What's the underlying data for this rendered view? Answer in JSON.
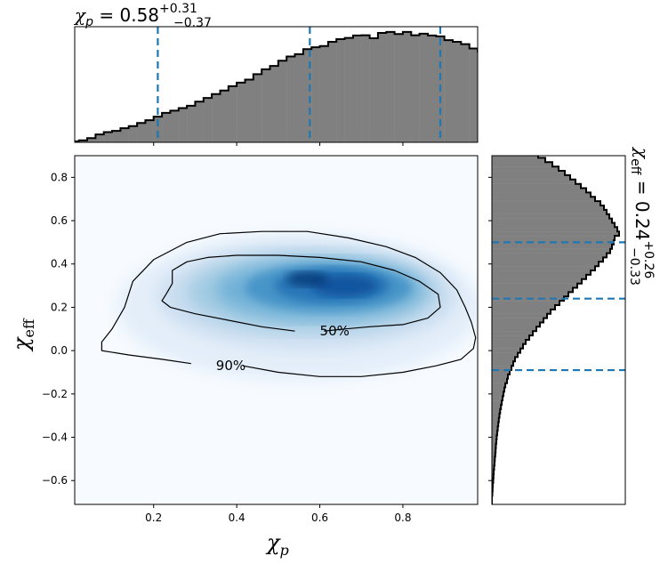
{
  "chart_data": [
    {
      "panel": "top-marginal",
      "type": "histogram",
      "parameter": "chi_p",
      "title": {
        "symbol": "χ",
        "sub": "p",
        "equals": " = 0.58",
        "plus": "+0.31",
        "minus": "−0.37"
      },
      "bins": {
        "start": 0.0,
        "width": 0.02
      },
      "counts": [
        0.8,
        1.7,
        3.5,
        6.5,
        8.4,
        9.4,
        11.6,
        13.3,
        15.9,
        18.2,
        21.1,
        24.2,
        26.0,
        28.1,
        30.0,
        33.4,
        36.5,
        39.7,
        42.5,
        46.1,
        49.0,
        51.5,
        56.0,
        60.0,
        62.8,
        67.1,
        70.5,
        72.4,
        76.6,
        78.1,
        79.1,
        82.6,
        84.8,
        85.8,
        87.8,
        88.0,
        85.5,
        89.9,
        90.7,
        89.0,
        90.7,
        88.0,
        89.2,
        87.8,
        87.0,
        84.0,
        82.6,
        80.7,
        77.1,
        74.6,
        73.6,
        70.0,
        67.1,
        63.6,
        59.2,
        55.3,
        52.4,
        48.5,
        44.4,
        41.2,
        37.9,
        32.8,
        29.1,
        25.5,
        21.5,
        17.8,
        13.8
      ],
      "quantiles": [
        0.21,
        0.576,
        0.89
      ],
      "xlim": [
        0.01,
        0.98
      ]
    },
    {
      "panel": "main",
      "type": "heatmap",
      "xlabel": {
        "symbol": "χ",
        "sub": "p"
      },
      "ylabel": {
        "symbol": "χ",
        "sub": "eff"
      },
      "xlim": [
        0.01,
        0.98
      ],
      "ylim": [
        -0.71,
        0.9
      ],
      "xticks": [
        0.2,
        0.4,
        0.6,
        0.8
      ],
      "yticks": [
        -0.6,
        -0.4,
        -0.2,
        0.0,
        0.2,
        0.4,
        0.6,
        0.8
      ],
      "ytick_labels": [
        "−0.6",
        "−0.4",
        "−0.2",
        "0.0",
        "0.2",
        "0.4",
        "0.6",
        "0.8"
      ],
      "density_peak": [
        0.65,
        0.3
      ],
      "contours": [
        {
          "label": "50%",
          "label_at": [
            0.6,
            0.09
          ],
          "points": [
            [
              0.61,
              0.09
            ],
            [
              0.66,
              0.1
            ],
            [
              0.72,
              0.11
            ],
            [
              0.8,
              0.12
            ],
            [
              0.86,
              0.15
            ],
            [
              0.89,
              0.2
            ],
            [
              0.885,
              0.26
            ],
            [
              0.84,
              0.32
            ],
            [
              0.78,
              0.37
            ],
            [
              0.7,
              0.41
            ],
            [
              0.6,
              0.43
            ],
            [
              0.5,
              0.44
            ],
            [
              0.4,
              0.44
            ],
            [
              0.33,
              0.43
            ],
            [
              0.28,
              0.41
            ],
            [
              0.245,
              0.37
            ],
            [
              0.245,
              0.31
            ],
            [
              0.23,
              0.26
            ],
            [
              0.22,
              0.23
            ],
            [
              0.24,
              0.2
            ],
            [
              0.3,
              0.17
            ],
            [
              0.38,
              0.14
            ],
            [
              0.46,
              0.11
            ],
            [
              0.54,
              0.09
            ]
          ]
        },
        {
          "label": "90%",
          "label_at": [
            0.35,
            -0.07
          ],
          "points": [
            [
              0.415,
              -0.07
            ],
            [
              0.5,
              -0.1
            ],
            [
              0.6,
              -0.12
            ],
            [
              0.7,
              -0.12
            ],
            [
              0.8,
              -0.1
            ],
            [
              0.88,
              -0.07
            ],
            [
              0.94,
              -0.04
            ],
            [
              0.97,
              0.01
            ],
            [
              0.975,
              0.06
            ],
            [
              0.965,
              0.13
            ],
            [
              0.95,
              0.2
            ],
            [
              0.93,
              0.28
            ],
            [
              0.89,
              0.36
            ],
            [
              0.83,
              0.43
            ],
            [
              0.76,
              0.48
            ],
            [
              0.67,
              0.52
            ],
            [
              0.57,
              0.55
            ],
            [
              0.46,
              0.55
            ],
            [
              0.36,
              0.54
            ],
            [
              0.28,
              0.5
            ],
            [
              0.2,
              0.42
            ],
            [
              0.15,
              0.32
            ],
            [
              0.13,
              0.2
            ],
            [
              0.1,
              0.1
            ],
            [
              0.075,
              0.04
            ],
            [
              0.075,
              0.0
            ],
            [
              0.14,
              -0.02
            ],
            [
              0.22,
              -0.04
            ],
            [
              0.29,
              -0.06
            ]
          ]
        }
      ],
      "colormap": "Blues"
    },
    {
      "panel": "right-marginal",
      "type": "histogram",
      "orientation": "horizontal",
      "parameter": "chi_eff",
      "title": {
        "symbol": "χ",
        "sub": "eff",
        "equals": " = 0.24",
        "plus": "+0.26",
        "minus": "−0.33"
      },
      "bins": {
        "start": -0.71,
        "width": 0.02
      },
      "counts": [
        0.0,
        0.0,
        0.3,
        0.5,
        0.7,
        1.0,
        1.2,
        1.4,
        1.7,
        2.0,
        2.2,
        2.5,
        2.8,
        3.0,
        3.3,
        3.6,
        4.0,
        4.4,
        4.8,
        5.2,
        5.7,
        6.2,
        6.8,
        7.4,
        8.0,
        8.7,
        9.3,
        10.1,
        11.3,
        12.0,
        13.3,
        14.7,
        16.0,
        17.3,
        19.3,
        21.3,
        23.3,
        25.3,
        28.0,
        30.7,
        33.3,
        36.0,
        38.7,
        41.3,
        44.0,
        47.3,
        50.7,
        54.0,
        57.3,
        60.7,
        64.0,
        67.3,
        70.7,
        74.0,
        77.3,
        80.0,
        83.3,
        86.0,
        88.7,
        90.0,
        91.3,
        92.0,
        95.3,
        94.0,
        92.0,
        90.0,
        88.0,
        86.0,
        84.0,
        81.3,
        77.3,
        74.0,
        70.7,
        66.7,
        62.7,
        58.7,
        54.7,
        50.0,
        45.3,
        40.0,
        34.7,
        29.3,
        24.0,
        18.7,
        14.7,
        10.7,
        7.3,
        5.3,
        4.0,
        3.0,
        2.0,
        1.3,
        0.7,
        0.3
      ],
      "quantiles": [
        -0.09,
        0.24,
        0.5
      ],
      "ylim": [
        -0.71,
        0.9
      ]
    }
  ]
}
